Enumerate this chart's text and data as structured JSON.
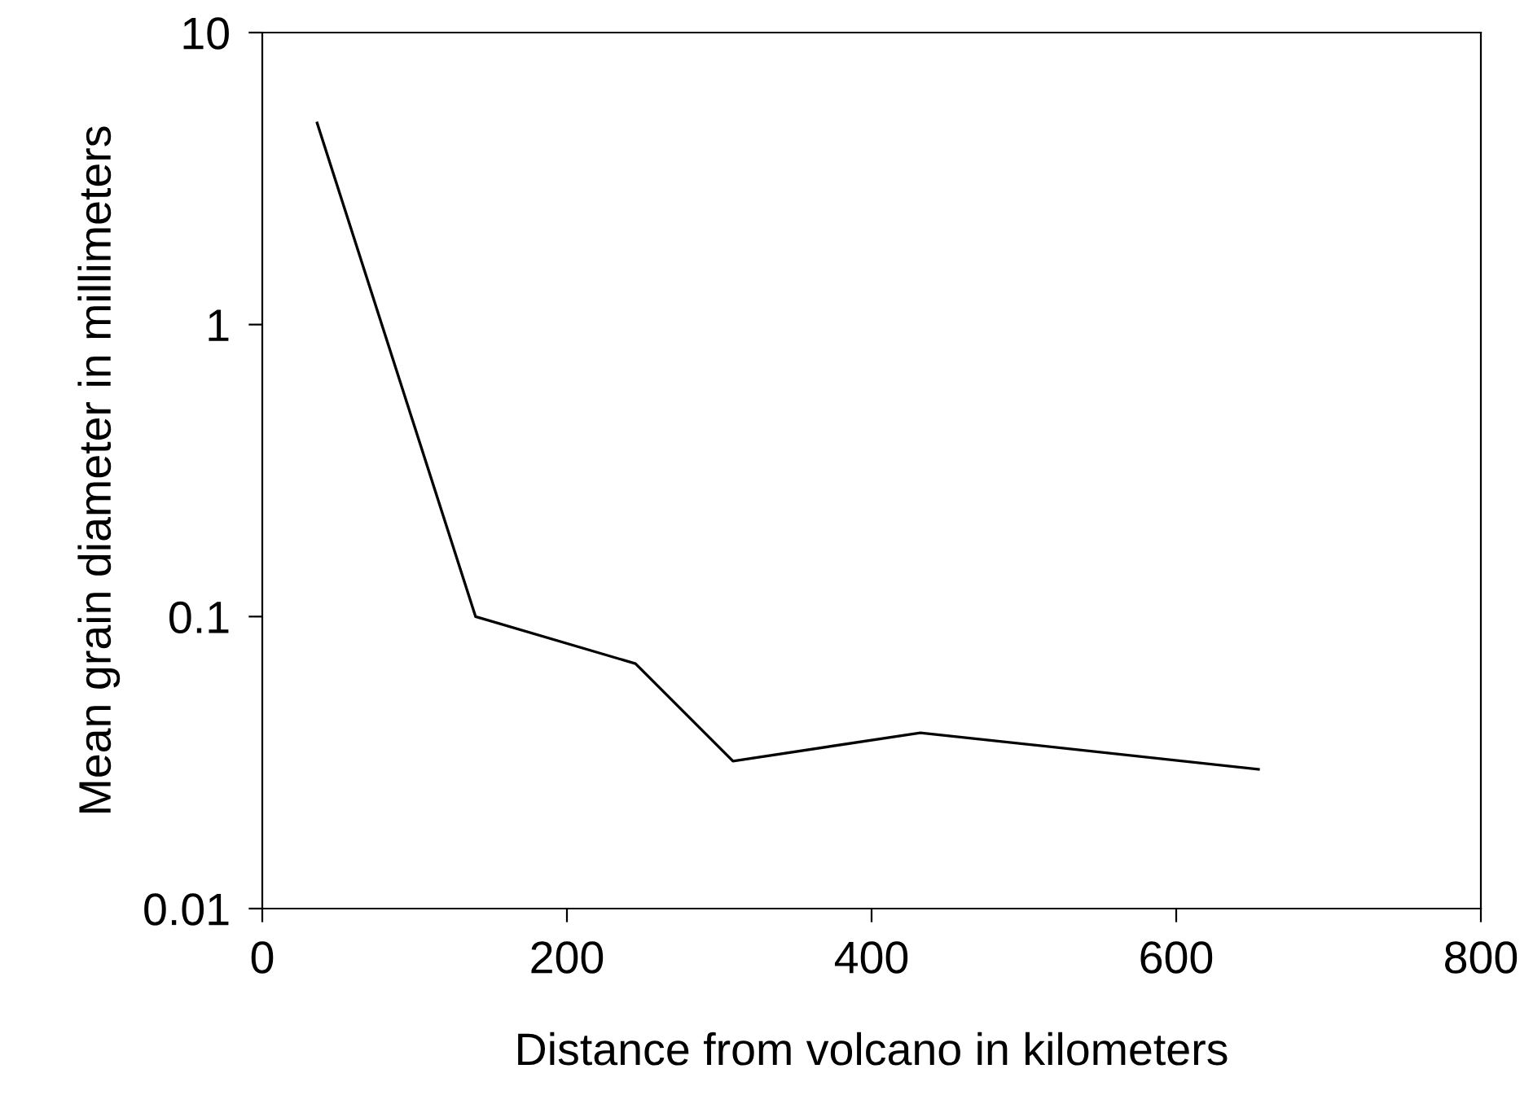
{
  "chart_data": {
    "type": "line",
    "xlabel": "Distance from volcano in kilometers",
    "ylabel": "Mean grain diameter in millimeters",
    "x": [
      36,
      140,
      245,
      309,
      432,
      654
    ],
    "series": [
      {
        "color": "#000000",
        "values": [
          4.9,
          0.1,
          0.069,
          0.032,
          0.04,
          0.03
        ]
      }
    ],
    "log": "y",
    "xlim": [
      0,
      800
    ],
    "xticks": [
      0,
      200,
      400,
      600,
      800
    ],
    "ylim": [
      0.01,
      10
    ],
    "yticks": [
      0.01,
      0.1,
      1,
      10
    ],
    "grid": false,
    "legend": false,
    "marker": "none",
    "line_style": "solid"
  }
}
